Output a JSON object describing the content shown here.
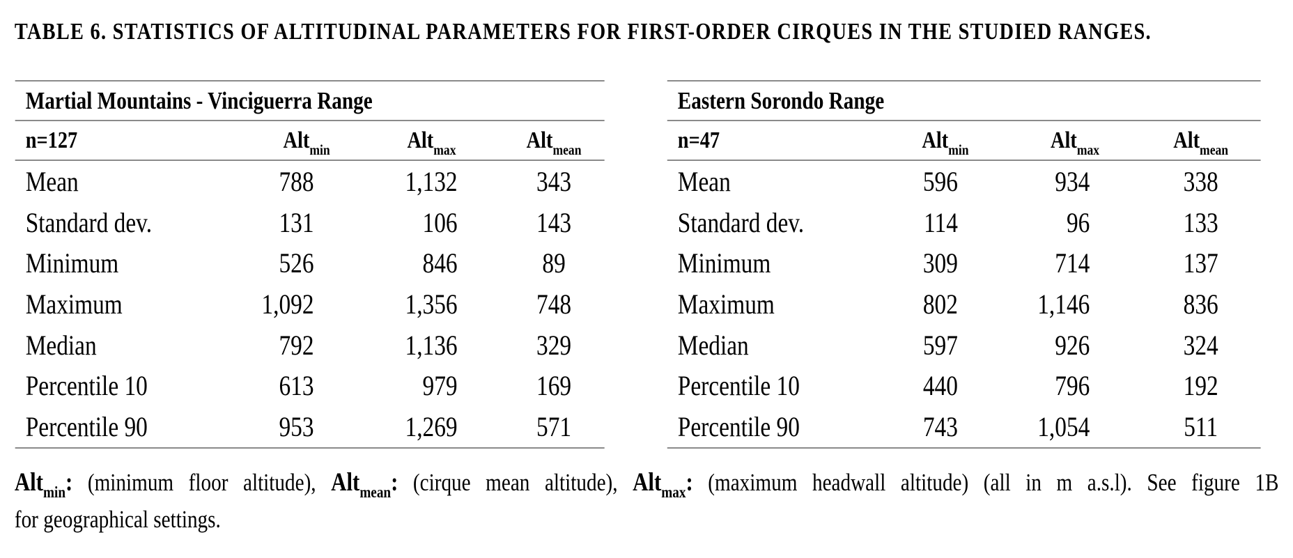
{
  "title": "TABLE 6. STATISTICS OF ALTITUDINAL PARAMETERS FOR FIRST-ORDER CIRQUES IN THE STUDIED RANGES.",
  "tables": [
    {
      "range_title": "Martial Mountains - Vinciguerra Range",
      "n_label": "n=127",
      "columns": [
        {
          "base": "Alt",
          "sub": "min"
        },
        {
          "base": "Alt",
          "sub": "max"
        },
        {
          "base": "Alt",
          "sub": "mean"
        }
      ],
      "rows": [
        {
          "label": "Mean",
          "values": [
            "788",
            "1,132",
            "343"
          ]
        },
        {
          "label": "Standard dev.",
          "values": [
            "131",
            "106",
            "143"
          ]
        },
        {
          "label": "Minimum",
          "values": [
            "526",
            "846",
            "89"
          ]
        },
        {
          "label": "Maximum",
          "values": [
            "1,092",
            "1,356",
            "748"
          ]
        },
        {
          "label": "Median",
          "values": [
            "792",
            "1,136",
            "329"
          ]
        },
        {
          "label": "Percentile 10",
          "values": [
            "613",
            "979",
            "169"
          ]
        },
        {
          "label": "Percentile 90",
          "values": [
            "953",
            "1,269",
            "571"
          ]
        }
      ]
    },
    {
      "range_title": "Eastern Sorondo Range",
      "n_label": "n=47",
      "columns": [
        {
          "base": "Alt",
          "sub": "min"
        },
        {
          "base": "Alt",
          "sub": "max"
        },
        {
          "base": "Alt",
          "sub": "mean"
        }
      ],
      "rows": [
        {
          "label": "Mean",
          "values": [
            "596",
            "934",
            "338"
          ]
        },
        {
          "label": "Standard dev.",
          "values": [
            "114",
            "96",
            "133"
          ]
        },
        {
          "label": "Minimum",
          "values": [
            "309",
            "714",
            "137"
          ]
        },
        {
          "label": "Maximum",
          "values": [
            "802",
            "1,146",
            "836"
          ]
        },
        {
          "label": "Median",
          "values": [
            "597",
            "926",
            "324"
          ]
        },
        {
          "label": "Percentile 10",
          "values": [
            "440",
            "796",
            "192"
          ]
        },
        {
          "label": "Percentile 90",
          "values": [
            "743",
            "1,054",
            "511"
          ]
        }
      ]
    }
  ],
  "footnote": {
    "abbr1": "Alt",
    "sub1": "min",
    "colon1": ":",
    "seg1": " (minimum floor altitude), ",
    "abbr2": "Alt",
    "sub2": "mean",
    "colon2": ":",
    "seg2": " (cirque mean altitude), ",
    "abbr3": "Alt",
    "sub3": "max",
    "colon3": ":",
    "seg3": " (maximum headwall altitude) (all in m a.s.l). See figure 1B",
    "line2": "for geographical settings."
  },
  "rule_color": "#8a8a8a",
  "text_color": "#000000",
  "background_color": "#ffffff"
}
